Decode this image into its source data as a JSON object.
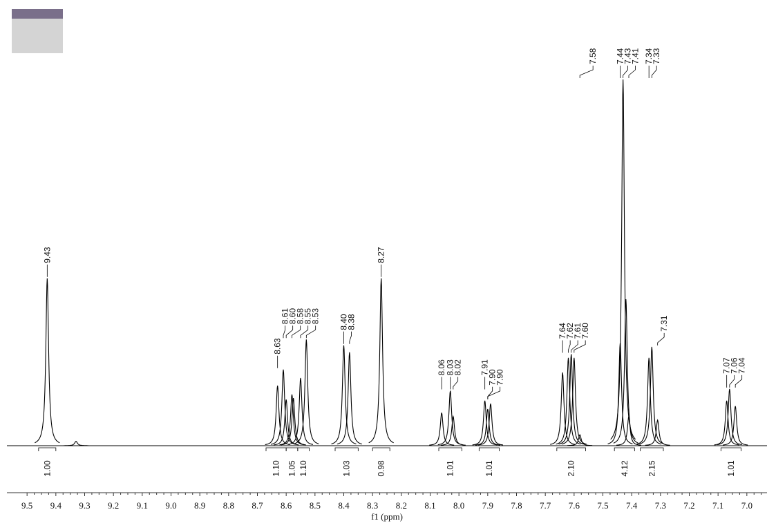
{
  "chart_data": {
    "type": "nmr",
    "x_label": "f1 (ppm)",
    "xlim": [
      9.57,
      6.93
    ],
    "xticks": [
      9.5,
      9.4,
      9.3,
      9.2,
      9.1,
      {
        "value": 9,
        "label": "9.0"
      },
      8.9,
      8.8,
      8.7,
      8.6,
      8.5,
      8.4,
      8.3,
      8.2,
      8.1,
      {
        "value": 8,
        "label": "8.0"
      },
      7.9,
      7.8,
      7.7,
      7.6,
      7.5,
      7.4,
      7.3,
      7.2,
      7.1,
      {
        "value": 7,
        "label": "7.0"
      }
    ],
    "ylim": [
      0,
      100
    ],
    "peaks": {
      "ppm": [
        9.43,
        9.33,
        8.63,
        8.61,
        8.6,
        8.58,
        8.575,
        8.55,
        8.53,
        8.4,
        8.38,
        8.27,
        8.06,
        8.03,
        8.02,
        7.91,
        7.9,
        7.89,
        7.64,
        7.62,
        7.61,
        7.6,
        7.58,
        7.44,
        7.43,
        7.42,
        7.41,
        7.34,
        7.33,
        7.31,
        7.07,
        7.06,
        7.04
      ],
      "intensity": [
        45.7,
        1.2,
        16.4,
        20.8,
        12.6,
        14,
        13,
        18.5,
        29,
        27.4,
        25.5,
        45.7,
        9,
        15,
        8,
        12.3,
        10,
        11.5,
        20,
        24,
        25,
        24,
        3,
        28,
        100,
        40,
        8,
        24,
        27,
        7,
        12.3,
        15.5,
        10.8
      ]
    },
    "peak_labels": {
      "values": [
        9.43,
        8.63,
        8.61,
        8.6,
        8.58,
        8.55,
        8.53,
        8.4,
        8.38,
        8.27,
        8.06,
        8.03,
        8.02,
        7.91,
        7.9,
        7.9,
        7.64,
        7.62,
        7.61,
        7.6,
        7.58,
        7.44,
        7.43,
        7.41,
        7.34,
        7.33,
        7.31,
        7.07,
        7.06,
        7.04
      ],
      "value_labels": [
        "9.43",
        "8.63",
        "8.61",
        "8.60",
        "8.58",
        "8.55",
        "8.53",
        "8.40",
        "8.38",
        "8.27",
        "8.06",
        "8.03",
        "8.02",
        "7.91",
        "7.90",
        "7.90",
        "7.64",
        "7.62",
        "7.61",
        "7.60",
        "7.58",
        "7.44",
        "7.43",
        "7.41",
        "7.34",
        "7.33",
        "7.31",
        "7.07",
        "7.06",
        "7.04"
      ]
    },
    "integrals": {
      "values": [
        1.0,
        1.1,
        1.05,
        1.1,
        1.03,
        0.98,
        1.01,
        1.01,
        2.1,
        4.12,
        2.15,
        1.01
      ],
      "value_labels": [
        "1.00",
        "1.10",
        "1.05",
        "1.10",
        "1.03",
        "0.98",
        "1.01",
        "1.01",
        "2.10",
        "4.12",
        "2.15",
        "1.01"
      ],
      "ranges": [
        [
          9.46,
          9.4
        ],
        [
          8.67,
          8.6
        ],
        [
          8.6,
          8.56
        ],
        [
          8.56,
          8.52
        ],
        [
          8.43,
          8.35
        ],
        [
          8.3,
          8.24
        ],
        [
          8.07,
          7.99
        ],
        [
          7.93,
          7.86
        ],
        [
          7.66,
          7.56
        ],
        [
          7.46,
          7.39
        ],
        [
          7.37,
          7.29
        ],
        [
          7.09,
          7.02
        ]
      ]
    }
  }
}
